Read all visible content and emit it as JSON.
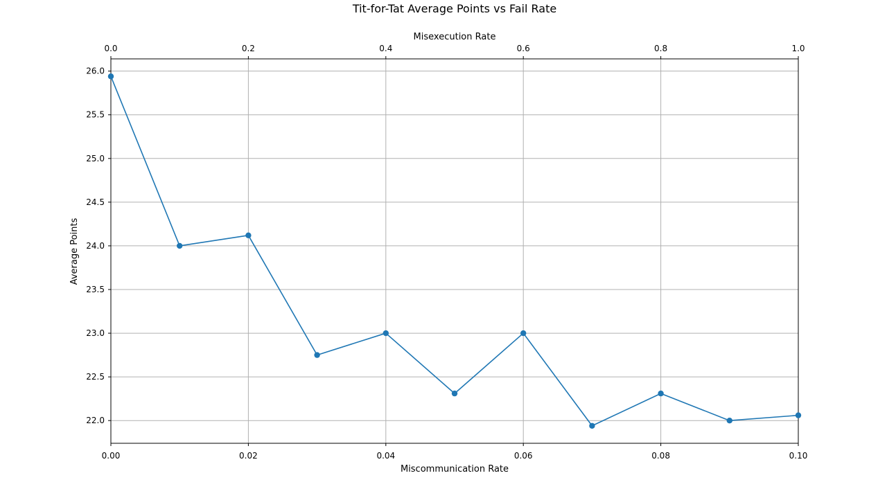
{
  "chart_data": {
    "type": "line",
    "title": "Tit-for-Tat Average Points vs Fail Rate",
    "xlabel": "Miscommunication Rate",
    "ylabel": "Average Points",
    "x2label": "Misexecution Rate",
    "xlim": [
      0.0,
      0.1
    ],
    "x2lim": [
      0.0,
      1.0
    ],
    "ylim": [
      21.74,
      26.14
    ],
    "xticks": [
      "0.00",
      "0.02",
      "0.04",
      "0.06",
      "0.08",
      "0.10"
    ],
    "x2ticks": [
      "0.0",
      "0.2",
      "0.4",
      "0.6",
      "0.8",
      "1.0"
    ],
    "yticks": [
      "22.0",
      "22.5",
      "23.0",
      "23.5",
      "24.0",
      "24.5",
      "25.0",
      "25.5",
      "26.0"
    ],
    "grid": true,
    "series": [
      {
        "color": "#1f77b4",
        "x": [
          0.0,
          0.01,
          0.02,
          0.03,
          0.04,
          0.05,
          0.06,
          0.07,
          0.08,
          0.09,
          0.1
        ],
        "y": [
          25.94,
          24.0,
          24.12,
          22.75,
          23.0,
          22.31,
          23.0,
          21.94,
          22.31,
          22.0,
          22.06
        ]
      }
    ]
  }
}
